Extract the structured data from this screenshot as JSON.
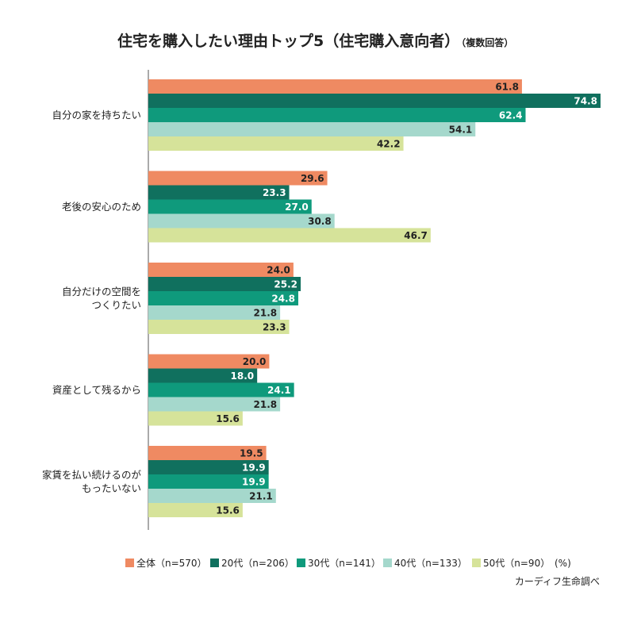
{
  "chart_data": {
    "type": "bar",
    "orientation": "horizontal",
    "title": "住宅を購入したい理由トップ5（住宅購入意向者）",
    "subtitle": "（複数回答）",
    "categories": [
      [
        "自分の家を持ちたい"
      ],
      [
        "老後の安心のため"
      ],
      [
        "自分だけの空間を",
        "つくりたい"
      ],
      [
        "資産として残るから"
      ],
      [
        "家賃を払い続けるのが",
        "もったいない"
      ]
    ],
    "series": [
      {
        "name": "全体（n=570）",
        "color": "#ef8a62",
        "label_color": "#222222",
        "values": [
          61.8,
          29.6,
          24.0,
          20.0,
          19.5
        ]
      },
      {
        "name": "20代（n=206）",
        "color": "#10705e",
        "label_color": "#ffffff",
        "values": [
          74.8,
          23.3,
          25.2,
          18.0,
          19.9
        ]
      },
      {
        "name": "30代（n=141）",
        "color": "#0f9a7c",
        "label_color": "#ffffff",
        "values": [
          62.4,
          27.0,
          24.8,
          24.1,
          19.9
        ]
      },
      {
        "name": "40代（n=133）",
        "color": "#a5d8cc",
        "label_color": "#222222",
        "values": [
          54.1,
          30.8,
          21.8,
          21.8,
          21.1
        ]
      },
      {
        "name": "50代（n=90）",
        "color": "#d6e39a",
        "label_color": "#222222",
        "values": [
          42.2,
          46.7,
          23.3,
          15.6,
          15.6
        ]
      }
    ],
    "unit": "(%)",
    "xlim": [
      0,
      80
    ],
    "grid": false,
    "legend_position": "bottom",
    "source": "カーディフ生命調べ"
  }
}
